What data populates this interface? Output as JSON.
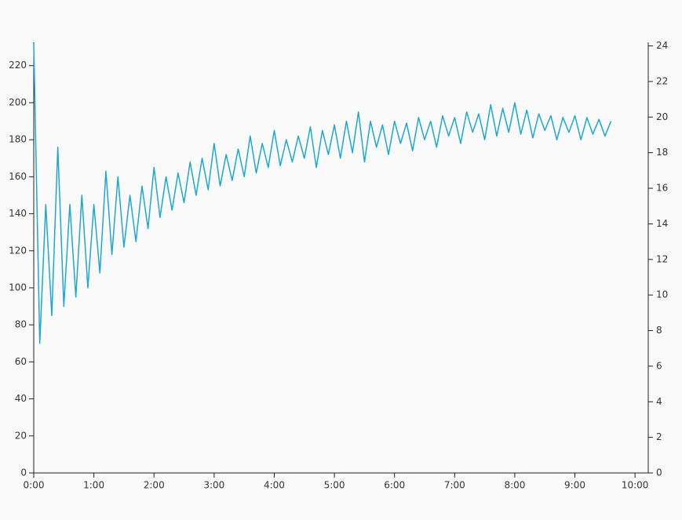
{
  "chart_data": {
    "type": "line",
    "x": [
      0,
      0.1,
      0.2,
      0.3,
      0.4,
      0.5,
      0.6,
      0.7,
      0.8,
      0.9,
      1,
      1.1,
      1.2,
      1.3,
      1.4,
      1.5,
      1.6,
      1.7,
      1.8,
      1.9,
      2,
      2.1,
      2.2,
      2.3,
      2.4,
      2.5,
      2.6,
      2.7,
      2.8,
      2.9,
      3,
      3.1,
      3.2,
      3.3,
      3.4,
      3.5,
      3.6,
      3.7,
      3.8,
      3.9,
      4,
      4.1,
      4.2,
      4.3,
      4.4,
      4.5,
      4.6,
      4.7,
      4.8,
      4.9,
      5,
      5.1,
      5.2,
      5.3,
      5.4,
      5.5,
      5.6,
      5.7,
      5.8,
      5.9,
      6,
      6.1,
      6.2,
      6.3,
      6.4,
      6.5,
      6.6,
      6.7,
      6.8,
      6.9,
      7,
      7.1,
      7.2,
      7.3,
      7.4,
      7.5,
      7.6,
      7.7,
      7.8,
      7.9,
      8,
      8.1,
      8.2,
      8.3,
      8.4,
      8.5,
      8.6,
      8.7,
      8.8,
      8.9,
      9,
      9.1,
      9.2,
      9.3,
      9.4,
      9.5,
      9.6
    ],
    "series": [
      {
        "color": "#1ba8d6",
        "values": [
          232,
          70,
          145,
          85,
          176,
          90,
          145,
          95,
          150,
          100,
          145,
          108,
          163,
          118,
          160,
          122,
          150,
          125,
          155,
          132,
          165,
          138,
          160,
          142,
          162,
          146,
          168,
          150,
          170,
          153,
          178,
          155,
          172,
          158,
          175,
          160,
          182,
          162,
          178,
          165,
          185,
          166,
          180,
          168,
          182,
          170,
          187,
          165,
          185,
          172,
          188,
          170,
          190,
          173,
          195,
          168,
          190,
          176,
          188,
          172,
          190,
          178,
          189,
          174,
          192,
          180,
          190,
          176,
          193,
          182,
          192,
          178,
          195,
          184,
          194,
          180,
          199,
          182,
          197,
          184,
          200,
          183,
          196,
          181,
          194,
          185,
          193,
          180,
          192,
          184,
          193,
          180,
          192,
          183,
          191,
          182,
          190
        ]
      }
    ],
    "xlim": [
      0,
      10.22
    ],
    "xticks": [
      {
        "value": 0,
        "label": "0:00"
      },
      {
        "value": 1,
        "label": "1:00"
      },
      {
        "value": 2,
        "label": "2:00"
      },
      {
        "value": 3,
        "label": "3:00"
      },
      {
        "value": 4,
        "label": "4:00"
      },
      {
        "value": 5,
        "label": "5:00"
      },
      {
        "value": 6,
        "label": "6:00"
      },
      {
        "value": 7,
        "label": "7:00"
      },
      {
        "value": 8,
        "label": "8:00"
      },
      {
        "value": 9,
        "label": "9:00"
      },
      {
        "value": 10,
        "label": "10:00"
      }
    ],
    "ylim": [
      0,
      232.6
    ],
    "yticks": [
      0,
      20,
      40,
      60,
      80,
      100,
      120,
      140,
      160,
      180,
      200,
      220
    ],
    "y2lim": [
      0,
      24.2
    ],
    "y2ticks": [
      0,
      2,
      4,
      6,
      8,
      10,
      12,
      14,
      16,
      18,
      20,
      22,
      24
    ]
  }
}
